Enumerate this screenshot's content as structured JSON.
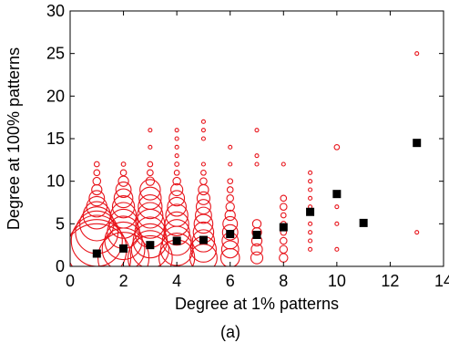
{
  "chart_data": {
    "type": "scatter",
    "xlabel": "Degree at 1% patterns",
    "ylabel": "Degree at 100% patterns",
    "caption": "(a)",
    "xlim": [
      0,
      14
    ],
    "ylim": [
      0,
      30
    ],
    "xticks": [
      "0",
      "2",
      "4",
      "6",
      "8",
      "10",
      "12",
      "14"
    ],
    "yticks": [
      "0",
      "5",
      "10",
      "15",
      "20",
      "25",
      "30"
    ],
    "xtick_values": [
      0,
      2,
      4,
      6,
      8,
      10,
      12,
      14
    ],
    "ytick_values": [
      0,
      5,
      10,
      15,
      20,
      25,
      30
    ],
    "grid": false,
    "colors": {
      "circles": "#e8141b",
      "mean": "#000000"
    },
    "series": [
      {
        "marker": "circle",
        "size_encodes": "frequency",
        "points": [
          {
            "x": 1,
            "y": 1,
            "r": 4.0
          },
          {
            "x": 1,
            "y": 2,
            "r": 3.5
          },
          {
            "x": 1,
            "y": 3,
            "r": 3.0
          },
          {
            "x": 1,
            "y": 4,
            "r": 2.5
          },
          {
            "x": 1,
            "y": 5,
            "r": 2.0
          },
          {
            "x": 1,
            "y": 6,
            "r": 1.6
          },
          {
            "x": 1,
            "y": 7,
            "r": 1.2
          },
          {
            "x": 1,
            "y": 8,
            "r": 0.9
          },
          {
            "x": 1,
            "y": 9,
            "r": 0.6
          },
          {
            "x": 1,
            "y": 10,
            "r": 0.45
          },
          {
            "x": 1,
            "y": 11,
            "r": 0.35
          },
          {
            "x": 1,
            "y": 12,
            "r": 0.3
          },
          {
            "x": 2,
            "y": 1,
            "r": 3.0
          },
          {
            "x": 2,
            "y": 2,
            "r": 2.5
          },
          {
            "x": 2,
            "y": 3,
            "r": 2.2
          },
          {
            "x": 2,
            "y": 4,
            "r": 1.9
          },
          {
            "x": 2,
            "y": 5,
            "r": 1.7
          },
          {
            "x": 2,
            "y": 6,
            "r": 1.5
          },
          {
            "x": 2,
            "y": 7,
            "r": 1.3
          },
          {
            "x": 2,
            "y": 8,
            "r": 1.1
          },
          {
            "x": 2,
            "y": 9,
            "r": 0.9
          },
          {
            "x": 2,
            "y": 10,
            "r": 0.6
          },
          {
            "x": 2,
            "y": 11,
            "r": 0.35
          },
          {
            "x": 2,
            "y": 12,
            "r": 0.25
          },
          {
            "x": 3,
            "y": 1,
            "r": 2.6
          },
          {
            "x": 3,
            "y": 2,
            "r": 2.2
          },
          {
            "x": 3,
            "y": 3,
            "r": 2.0
          },
          {
            "x": 3,
            "y": 4,
            "r": 1.8
          },
          {
            "x": 3,
            "y": 5,
            "r": 1.7
          },
          {
            "x": 3,
            "y": 6,
            "r": 1.5
          },
          {
            "x": 3,
            "y": 7,
            "r": 1.4
          },
          {
            "x": 3,
            "y": 8,
            "r": 1.3
          },
          {
            "x": 3,
            "y": 9,
            "r": 1.2
          },
          {
            "x": 3,
            "y": 10,
            "r": 0.5
          },
          {
            "x": 3,
            "y": 11,
            "r": 0.35
          },
          {
            "x": 3,
            "y": 12,
            "r": 0.3
          },
          {
            "x": 3,
            "y": 14,
            "r": 0.2
          },
          {
            "x": 3,
            "y": 16,
            "r": 0.15
          },
          {
            "x": 4,
            "y": 1,
            "r": 2.1
          },
          {
            "x": 4,
            "y": 2,
            "r": 1.9
          },
          {
            "x": 4,
            "y": 3,
            "r": 1.7
          },
          {
            "x": 4,
            "y": 4,
            "r": 1.5
          },
          {
            "x": 4,
            "y": 5,
            "r": 1.4
          },
          {
            "x": 4,
            "y": 6,
            "r": 1.3
          },
          {
            "x": 4,
            "y": 7,
            "r": 1.1
          },
          {
            "x": 4,
            "y": 8,
            "r": 0.9
          },
          {
            "x": 4,
            "y": 9,
            "r": 0.7
          },
          {
            "x": 4,
            "y": 10,
            "r": 0.45
          },
          {
            "x": 4,
            "y": 11,
            "r": 0.3
          },
          {
            "x": 4,
            "y": 12,
            "r": 0.25
          },
          {
            "x": 4,
            "y": 13,
            "r": 0.2
          },
          {
            "x": 4,
            "y": 14,
            "r": 0.18
          },
          {
            "x": 4,
            "y": 15,
            "r": 0.15
          },
          {
            "x": 4,
            "y": 16,
            "r": 0.15
          },
          {
            "x": 5,
            "y": 1,
            "r": 1.6
          },
          {
            "x": 5,
            "y": 2,
            "r": 1.5
          },
          {
            "x": 5,
            "y": 3,
            "r": 1.3
          },
          {
            "x": 5,
            "y": 4,
            "r": 1.2
          },
          {
            "x": 5,
            "y": 5,
            "r": 1.1
          },
          {
            "x": 5,
            "y": 6,
            "r": 0.95
          },
          {
            "x": 5,
            "y": 7,
            "r": 0.85
          },
          {
            "x": 5,
            "y": 8,
            "r": 0.75
          },
          {
            "x": 5,
            "y": 9,
            "r": 0.6
          },
          {
            "x": 5,
            "y": 10,
            "r": 0.4
          },
          {
            "x": 5,
            "y": 11,
            "r": 0.3
          },
          {
            "x": 5,
            "y": 12,
            "r": 0.2
          },
          {
            "x": 5,
            "y": 15,
            "r": 0.15
          },
          {
            "x": 5,
            "y": 16,
            "r": 0.15
          },
          {
            "x": 5,
            "y": 17,
            "r": 0.15
          },
          {
            "x": 6,
            "y": 1,
            "r": 1.1
          },
          {
            "x": 6,
            "y": 2,
            "r": 1.0
          },
          {
            "x": 6,
            "y": 3,
            "r": 0.95
          },
          {
            "x": 6,
            "y": 4,
            "r": 0.9
          },
          {
            "x": 6,
            "y": 5,
            "r": 0.85
          },
          {
            "x": 6,
            "y": 6,
            "r": 0.6
          },
          {
            "x": 6,
            "y": 7,
            "r": 0.5
          },
          {
            "x": 6,
            "y": 8,
            "r": 0.4
          },
          {
            "x": 6,
            "y": 9,
            "r": 0.35
          },
          {
            "x": 6,
            "y": 10,
            "r": 0.3
          },
          {
            "x": 6,
            "y": 12,
            "r": 0.15
          },
          {
            "x": 6,
            "y": 14,
            "r": 0.15
          },
          {
            "x": 7,
            "y": 1,
            "r": 0.7
          },
          {
            "x": 7,
            "y": 2,
            "r": 0.65
          },
          {
            "x": 7,
            "y": 3,
            "r": 0.6
          },
          {
            "x": 7,
            "y": 4,
            "r": 0.55
          },
          {
            "x": 7,
            "y": 5,
            "r": 0.5
          },
          {
            "x": 7,
            "y": 12,
            "r": 0.15
          },
          {
            "x": 7,
            "y": 13,
            "r": 0.15
          },
          {
            "x": 7,
            "y": 16,
            "r": 0.15
          },
          {
            "x": 8,
            "y": 1,
            "r": 0.5
          },
          {
            "x": 8,
            "y": 2,
            "r": 0.45
          },
          {
            "x": 8,
            "y": 3,
            "r": 0.4
          },
          {
            "x": 8,
            "y": 4,
            "r": 0.35
          },
          {
            "x": 8,
            "y": 5,
            "r": 0.3
          },
          {
            "x": 8,
            "y": 6,
            "r": 0.3
          },
          {
            "x": 8,
            "y": 7,
            "r": 0.4
          },
          {
            "x": 8,
            "y": 8,
            "r": 0.35
          },
          {
            "x": 8,
            "y": 12,
            "r": 0.15
          },
          {
            "x": 9,
            "y": 2,
            "r": 0.15
          },
          {
            "x": 9,
            "y": 3,
            "r": 0.15
          },
          {
            "x": 9,
            "y": 4,
            "r": 0.15
          },
          {
            "x": 9,
            "y": 5,
            "r": 0.15
          },
          {
            "x": 9,
            "y": 7,
            "r": 0.15
          },
          {
            "x": 9,
            "y": 8,
            "r": 0.15
          },
          {
            "x": 9,
            "y": 9,
            "r": 0.18
          },
          {
            "x": 9,
            "y": 10,
            "r": 0.2
          },
          {
            "x": 9,
            "y": 11,
            "r": 0.2
          },
          {
            "x": 10,
            "y": 2,
            "r": 0.15
          },
          {
            "x": 10,
            "y": 5,
            "r": 0.15
          },
          {
            "x": 10,
            "y": 7,
            "r": 0.15
          },
          {
            "x": 10,
            "y": 14,
            "r": 0.3
          },
          {
            "x": 13,
            "y": 4,
            "r": 0.15
          },
          {
            "x": 13,
            "y": 25,
            "r": 0.15
          }
        ]
      },
      {
        "marker": "square",
        "points": [
          {
            "x": 1,
            "y": 1.5
          },
          {
            "x": 2,
            "y": 2.1
          },
          {
            "x": 3,
            "y": 2.5
          },
          {
            "x": 4,
            "y": 3.0
          },
          {
            "x": 5,
            "y": 3.1
          },
          {
            "x": 6,
            "y": 3.8
          },
          {
            "x": 7,
            "y": 3.7
          },
          {
            "x": 8,
            "y": 4.6
          },
          {
            "x": 9,
            "y": 6.4
          },
          {
            "x": 10,
            "y": 8.5
          },
          {
            "x": 11,
            "y": 5.1
          },
          {
            "x": 13,
            "y": 14.5
          }
        ]
      }
    ]
  }
}
